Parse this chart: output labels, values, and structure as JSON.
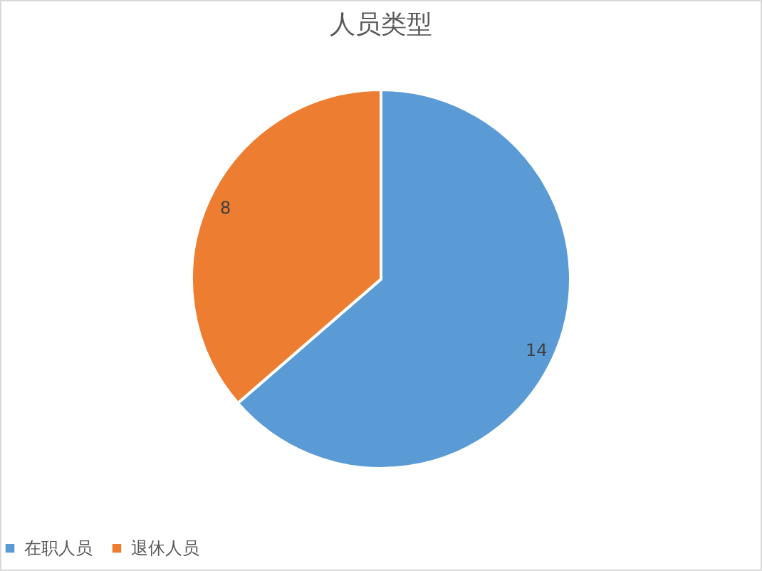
{
  "chart_data": {
    "type": "pie",
    "title": "人员类型",
    "categories": [
      "在职人员",
      "退休人员"
    ],
    "values": [
      14,
      8
    ],
    "colors": [
      "#5b9bd5",
      "#ed7d31"
    ],
    "data_labels": true,
    "legend": "bottom"
  }
}
